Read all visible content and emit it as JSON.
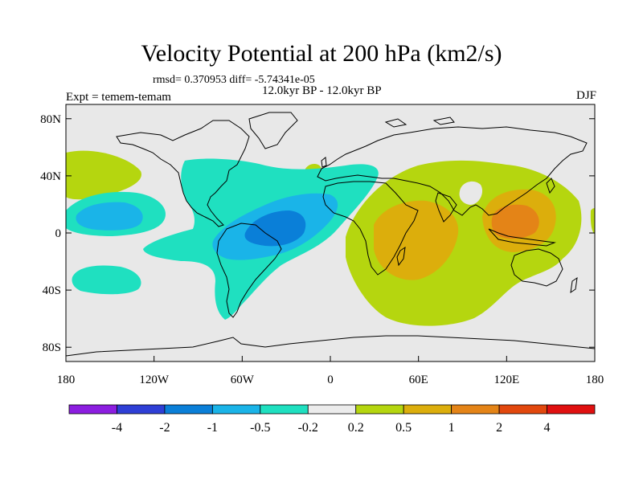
{
  "title": "Velocity Potential at 200 hPa (km2/s)",
  "stats": "rmsd= 0.370953 diff= -5.74341e-05",
  "period": "12.0kyr BP - 12.0kyr BP",
  "expt": "Expt = temem-temam",
  "season": "DJF",
  "map": {
    "lat_ticks": [
      "80N",
      "40N",
      "0",
      "40S",
      "80S"
    ],
    "lat_values": [
      80,
      40,
      0,
      -40,
      -80
    ],
    "lon_ticks": [
      "180",
      "120W",
      "60W",
      "0",
      "60E",
      "120E",
      "180"
    ],
    "lon_values": [
      -180,
      -120,
      -60,
      0,
      60,
      120,
      180
    ],
    "background_color": "#e8e8e8",
    "coast_color": "#000000"
  },
  "colorbar": {
    "labels": [
      "-4",
      "-2",
      "-1",
      "-0.5",
      "-0.2",
      "0.2",
      "0.5",
      "1",
      "2",
      "4"
    ],
    "colors": [
      "#8c1ee0",
      "#2e3fd6",
      "#0a7fd8",
      "#1ab4e8",
      "#1fe0c0",
      "#ececec",
      "#b5d60f",
      "#dcae0c",
      "#e48417",
      "#e2480e",
      "#e01010"
    ]
  }
}
